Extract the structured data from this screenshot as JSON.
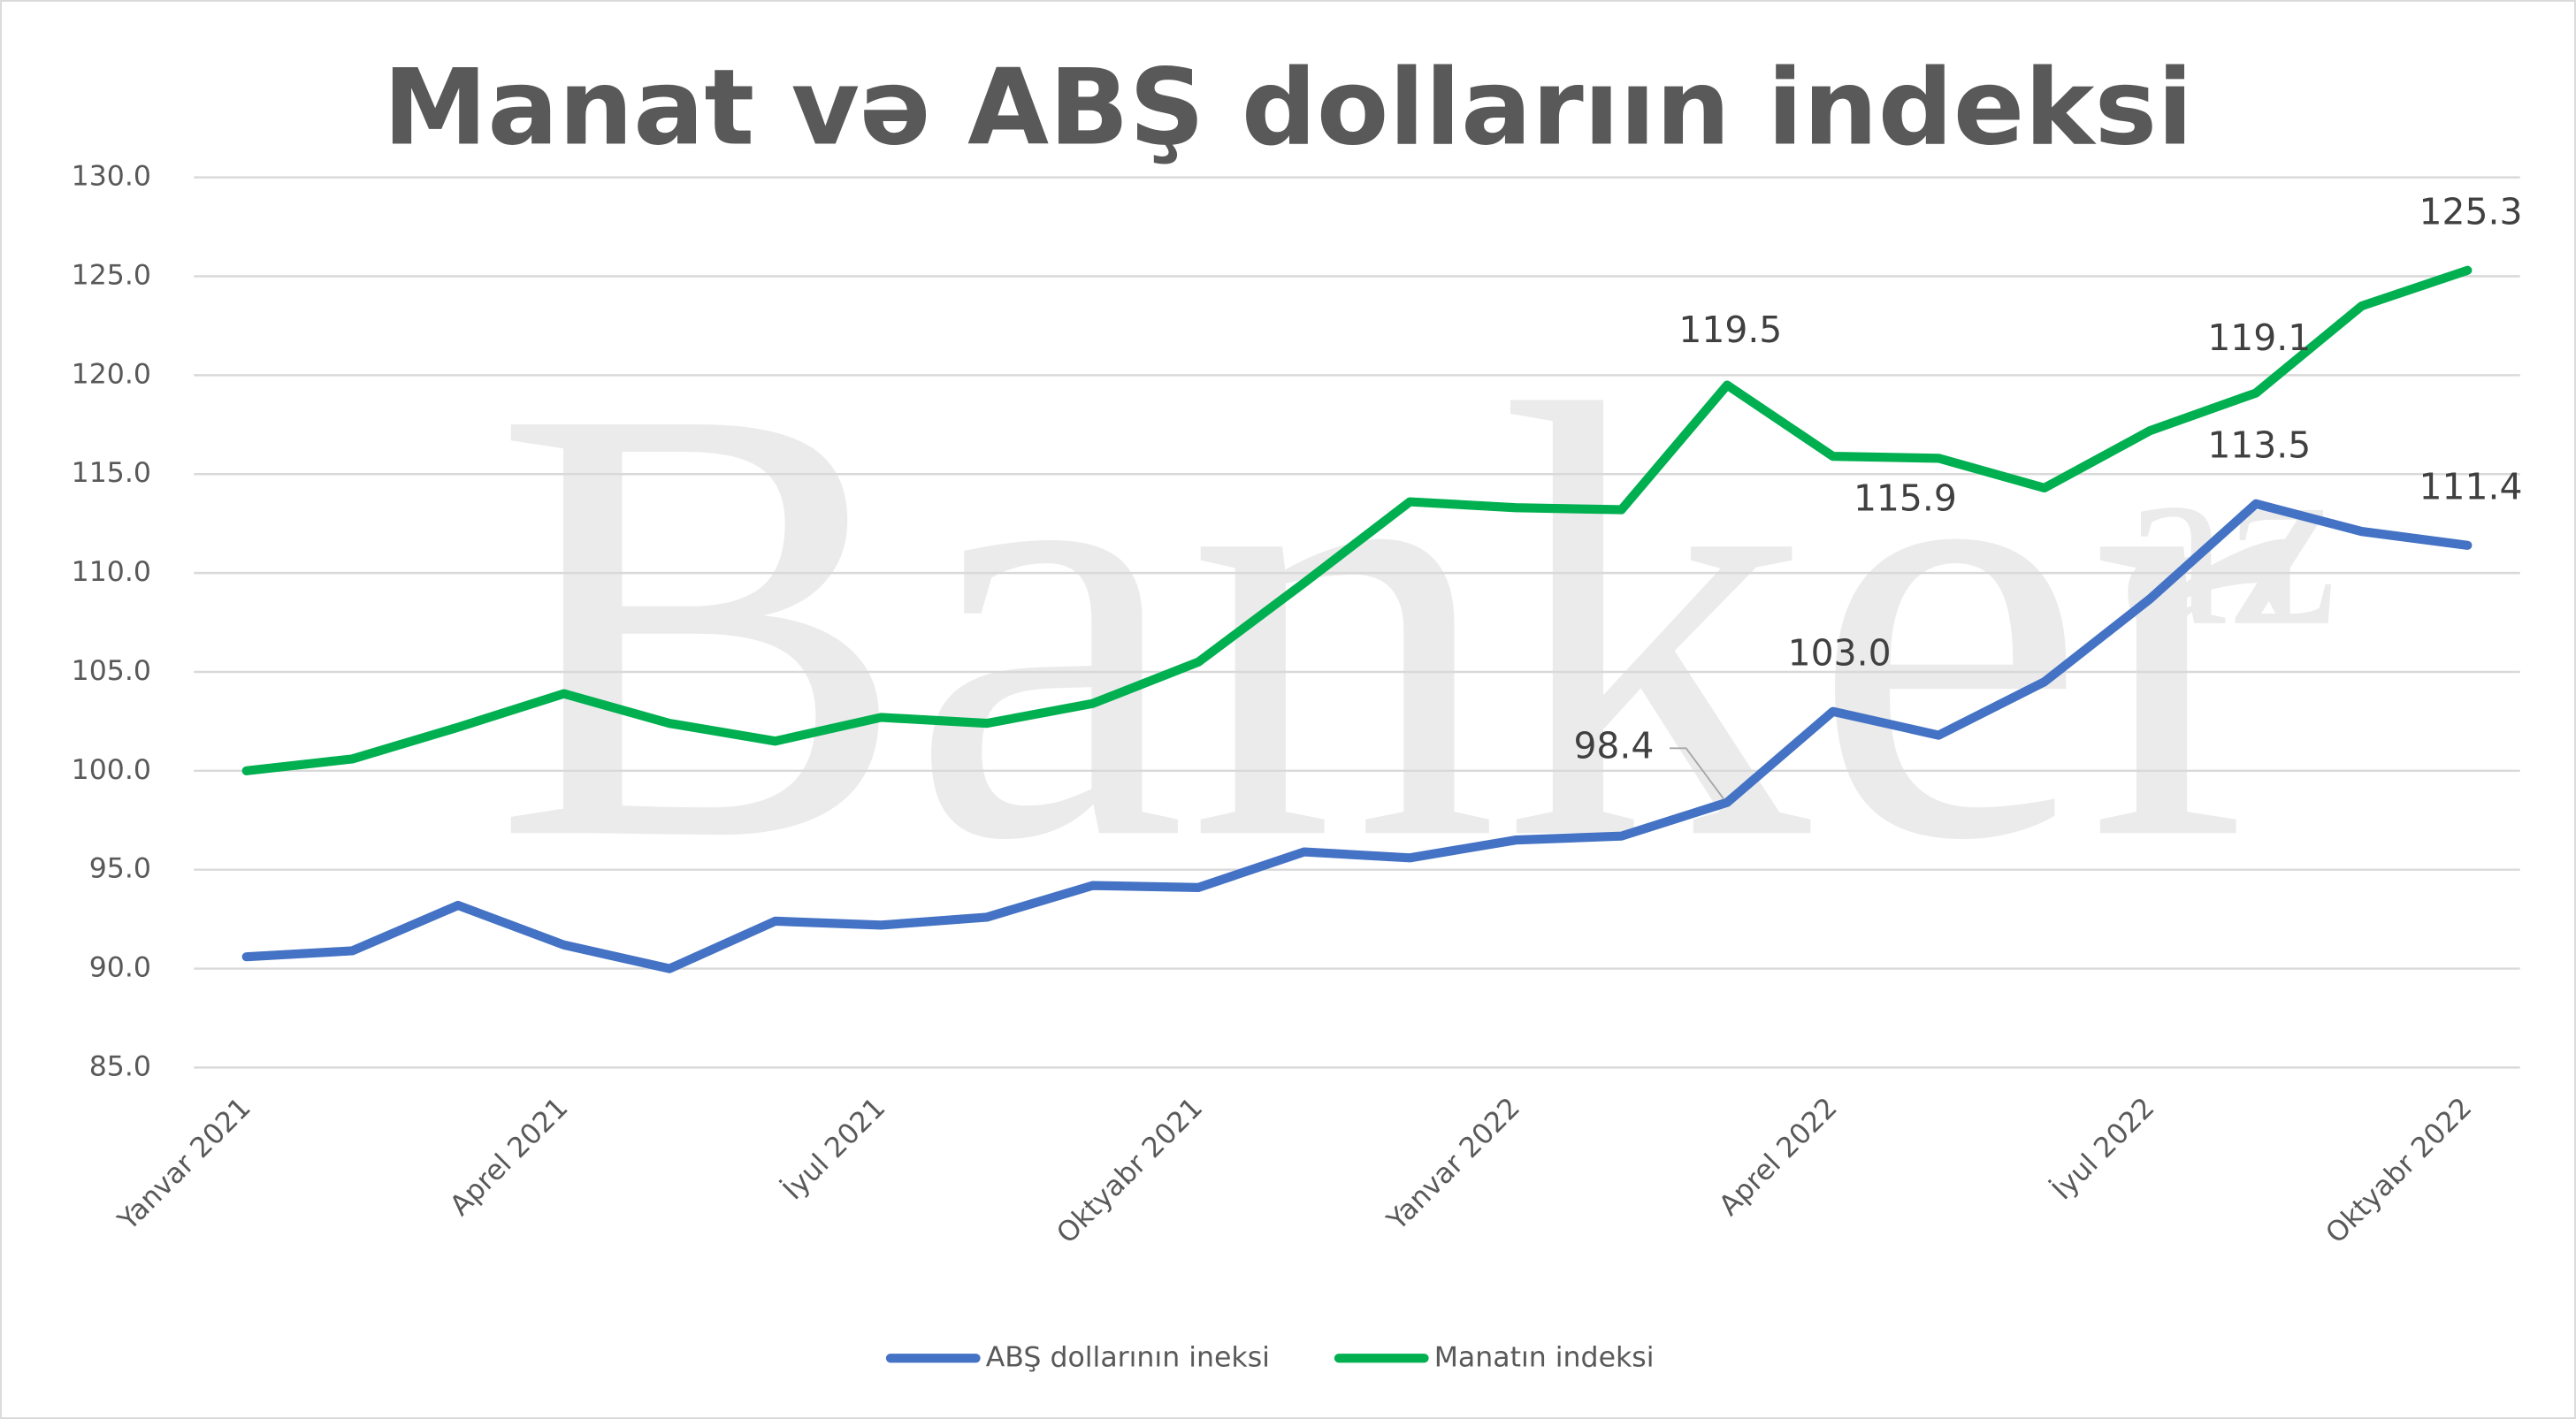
{
  "chart_data": {
    "type": "line",
    "title": "Manat və ABŞ dollarıın indeksi",
    "watermark": "Banker",
    "watermark_suffix": "az",
    "categories": [
      "Yanvar 2021",
      null,
      null,
      "Aprel  2021",
      null,
      null,
      "İyul  2021",
      null,
      null,
      "Oktyabr  2021",
      null,
      null,
      "Yanvar 2022",
      null,
      null,
      "Aprel 2022",
      null,
      null,
      "İyul 2022",
      null,
      null,
      "Oktyabr 2022"
    ],
    "series": [
      {
        "name": "ABŞ dollarının ineksi",
        "color": "#4472c4",
        "values": [
          90.6,
          90.9,
          93.2,
          91.2,
          90.0,
          92.4,
          92.2,
          92.6,
          94.2,
          94.1,
          95.9,
          95.6,
          96.5,
          96.7,
          98.4,
          103.0,
          101.8,
          104.5,
          108.7,
          113.5,
          112.1,
          111.4
        ],
        "value_labels": [
          null,
          null,
          null,
          null,
          null,
          null,
          null,
          null,
          null,
          null,
          null,
          null,
          null,
          null,
          "98.4",
          "103.0",
          null,
          null,
          null,
          "113.5",
          null,
          "111.4"
        ]
      },
      {
        "name": "Manatın indeksi",
        "color": "#00b050",
        "values": [
          100.0,
          100.6,
          102.2,
          103.9,
          102.4,
          101.5,
          102.7,
          102.4,
          103.4,
          105.5,
          109.5,
          113.6,
          113.3,
          113.2,
          119.5,
          115.9,
          115.8,
          114.3,
          117.2,
          119.1,
          123.5,
          125.3
        ],
        "value_labels": [
          null,
          null,
          null,
          null,
          null,
          null,
          null,
          null,
          null,
          null,
          null,
          null,
          null,
          null,
          "119.5",
          "115.9",
          null,
          null,
          null,
          "119.1",
          null,
          "125.3"
        ]
      }
    ],
    "ylim": [
      85,
      130
    ],
    "yticks": [
      {
        "value": 85,
        "label": "85.0"
      },
      {
        "value": 90,
        "label": "90.0"
      },
      {
        "value": 95,
        "label": "95.0"
      },
      {
        "value": 100,
        "label": "100.0"
      },
      {
        "value": 105,
        "label": "105.0"
      },
      {
        "value": 110,
        "label": "110.0"
      },
      {
        "value": 115,
        "label": "115.0"
      },
      {
        "value": 120,
        "label": "120.0"
      },
      {
        "value": 125,
        "label": "125.0"
      },
      {
        "value": 130,
        "label": "130.0"
      }
    ],
    "grid": true,
    "legend": "bottom"
  }
}
